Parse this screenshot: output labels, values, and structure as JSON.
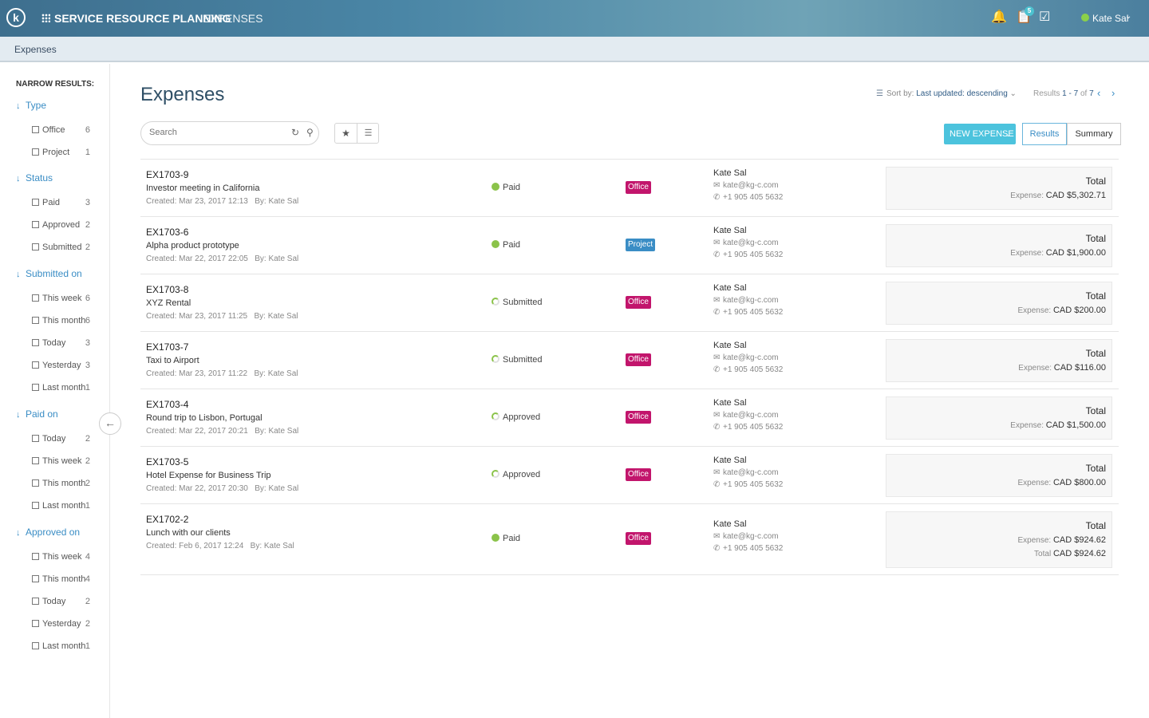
{
  "header": {
    "logo_letter": "k",
    "app_title": "SERVICE RESOURCE PLANNING",
    "section": "EXPENSES",
    "notification_count": "5",
    "user_name": "Kate Sal"
  },
  "breadcrumb": "Expenses",
  "sidebar": {
    "heading": "NARROW RESULTS:",
    "groups": [
      {
        "title": "Type",
        "items": [
          {
            "label": "Office",
            "count": "6"
          },
          {
            "label": "Project",
            "count": "1"
          }
        ]
      },
      {
        "title": "Status",
        "items": [
          {
            "label": "Paid",
            "count": "3"
          },
          {
            "label": "Approved",
            "count": "2"
          },
          {
            "label": "Submitted",
            "count": "2"
          }
        ]
      },
      {
        "title": "Submitted on",
        "items": [
          {
            "label": "This week",
            "count": "6"
          },
          {
            "label": "This month",
            "count": "6"
          },
          {
            "label": "Today",
            "count": "3"
          },
          {
            "label": "Yesterday",
            "count": "3"
          },
          {
            "label": "Last month",
            "count": "1"
          }
        ]
      },
      {
        "title": "Paid on",
        "items": [
          {
            "label": "Today",
            "count": "2"
          },
          {
            "label": "This week",
            "count": "2"
          },
          {
            "label": "This month",
            "count": "2"
          },
          {
            "label": "Last month",
            "count": "1"
          }
        ]
      },
      {
        "title": "Approved on",
        "items": [
          {
            "label": "This week",
            "count": "4"
          },
          {
            "label": "This month",
            "count": "4"
          },
          {
            "label": "Today",
            "count": "2"
          },
          {
            "label": "Yesterday",
            "count": "2"
          },
          {
            "label": "Last month",
            "count": "1"
          }
        ]
      }
    ]
  },
  "main": {
    "title": "Expenses",
    "sort_label": "Sort by:",
    "sort_value": "Last updated: descending",
    "results_prefix": "Results",
    "results_range": "1 - 7",
    "results_of": "of",
    "results_total": "7",
    "search_placeholder": "Search",
    "new_button": "NEW EXPENSE",
    "tab_results": "Results",
    "tab_summary": "Summary"
  },
  "colors": {
    "accent": "#4cc3dd",
    "office": "#c2156c",
    "project": "#3a8dc5",
    "paid": "#8bc34a"
  },
  "expenses": [
    {
      "id": "EX1703-9",
      "desc": "Investor meeting in California",
      "created": "Created: Mar 23, 2017 12:13",
      "by": "By: Kate Sal",
      "status": "Paid",
      "type": "Office",
      "contact": "Kate Sal",
      "email": "kate@kg-c.com",
      "phone": "+1 905 405 5632",
      "total_label": "Total",
      "lines": [
        {
          "label": "Expense:",
          "amount": "CAD $5,302.71"
        }
      ]
    },
    {
      "id": "EX1703-6",
      "desc": "Alpha product prototype",
      "created": "Created: Mar 22, 2017 22:05",
      "by": "By: Kate Sal",
      "status": "Paid",
      "type": "Project",
      "contact": "Kate Sal",
      "email": "kate@kg-c.com",
      "phone": "+1 905 405 5632",
      "total_label": "Total",
      "lines": [
        {
          "label": "Expense:",
          "amount": "CAD $1,900.00"
        }
      ]
    },
    {
      "id": "EX1703-8",
      "desc": "XYZ Rental",
      "created": "Created: Mar 23, 2017 11:25",
      "by": "By: Kate Sal",
      "status": "Submitted",
      "type": "Office",
      "contact": "Kate Sal",
      "email": "kate@kg-c.com",
      "phone": "+1 905 405 5632",
      "total_label": "Total",
      "lines": [
        {
          "label": "Expense:",
          "amount": "CAD $200.00"
        }
      ]
    },
    {
      "id": "EX1703-7",
      "desc": "Taxi to Airport",
      "created": "Created: Mar 23, 2017 11:22",
      "by": "By: Kate Sal",
      "status": "Submitted",
      "type": "Office",
      "contact": "Kate Sal",
      "email": "kate@kg-c.com",
      "phone": "+1 905 405 5632",
      "total_label": "Total",
      "lines": [
        {
          "label": "Expense:",
          "amount": "CAD $116.00"
        }
      ]
    },
    {
      "id": "EX1703-4",
      "desc": "Round trip to Lisbon, Portugal",
      "created": "Created: Mar 22, 2017 20:21",
      "by": "By: Kate Sal",
      "status": "Approved",
      "type": "Office",
      "contact": "Kate Sal",
      "email": "kate@kg-c.com",
      "phone": "+1 905 405 5632",
      "total_label": "Total",
      "lines": [
        {
          "label": "Expense:",
          "amount": "CAD $1,500.00"
        }
      ]
    },
    {
      "id": "EX1703-5",
      "desc": "Hotel Expense for Business Trip",
      "created": "Created: Mar 22, 2017 20:30",
      "by": "By: Kate Sal",
      "status": "Approved",
      "type": "Office",
      "contact": "Kate Sal",
      "email": "kate@kg-c.com",
      "phone": "+1 905 405 5632",
      "total_label": "Total",
      "lines": [
        {
          "label": "Expense:",
          "amount": "CAD $800.00"
        }
      ]
    },
    {
      "id": "EX1702-2",
      "desc": "Lunch with our clients",
      "created": "Created: Feb 6, 2017 12:24",
      "by": "By: Kate Sal",
      "status": "Paid",
      "type": "Office",
      "contact": "Kate Sal",
      "email": "kate@kg-c.com",
      "phone": "+1 905 405 5632",
      "total_label": "Total",
      "lines": [
        {
          "label": "Expense:",
          "amount": "CAD $924.62"
        },
        {
          "label": "Total",
          "amount": "CAD $924.62"
        }
      ]
    }
  ]
}
